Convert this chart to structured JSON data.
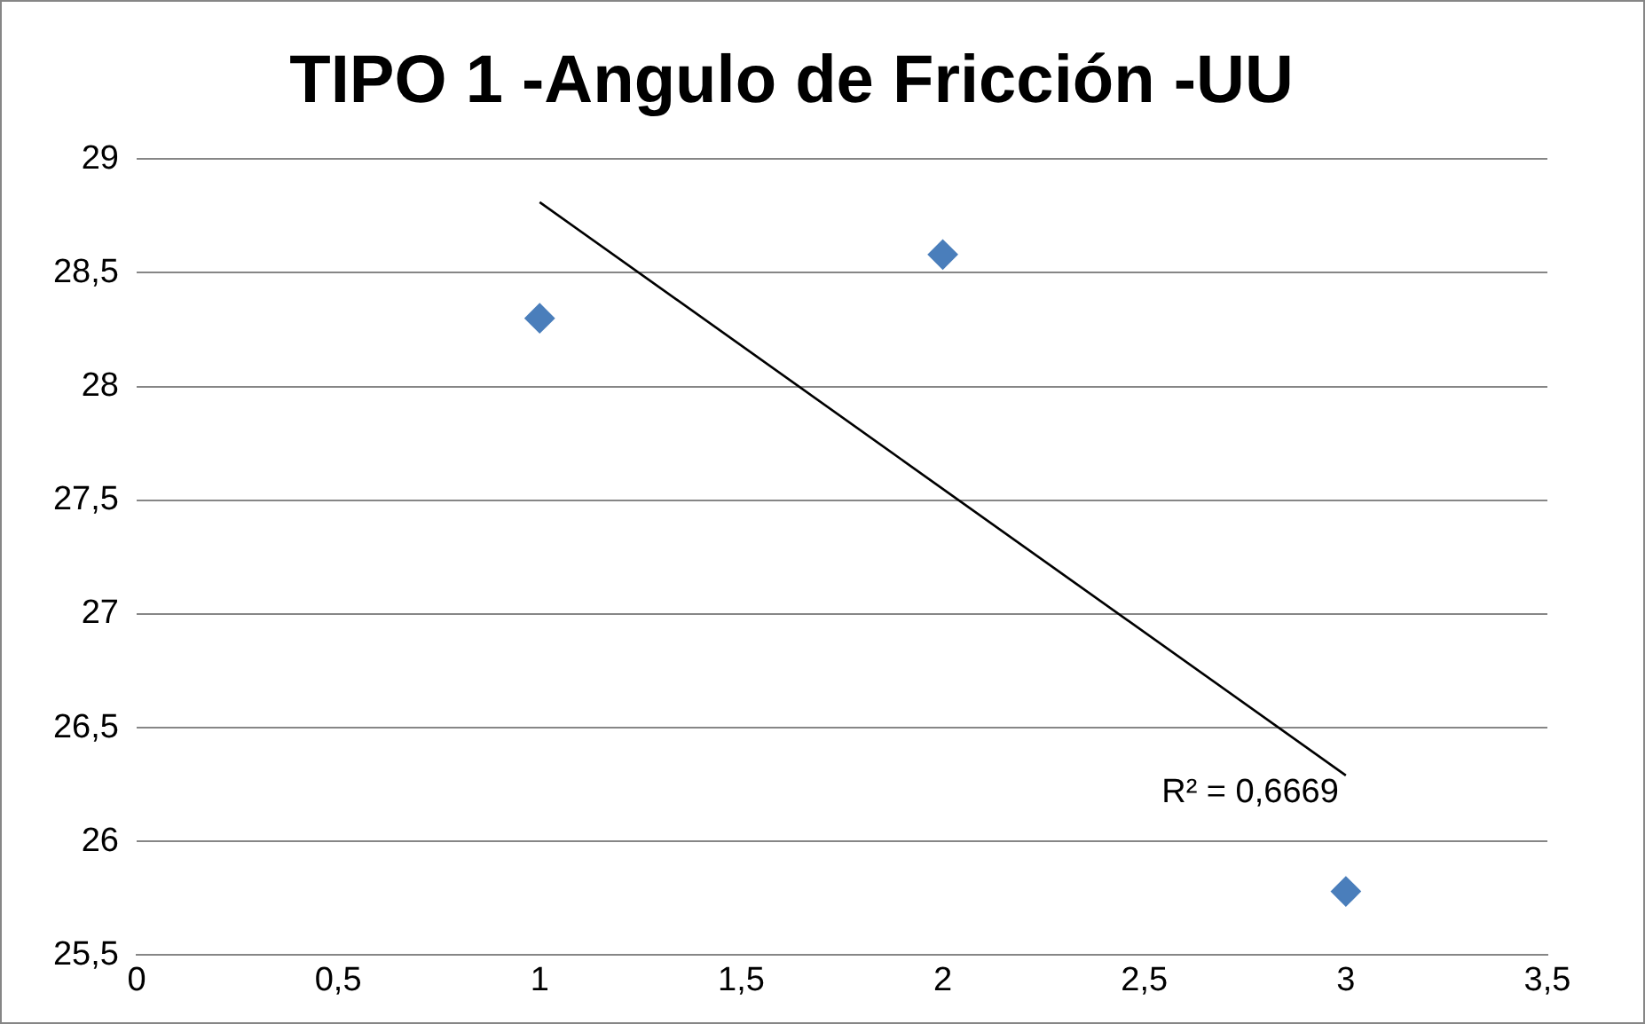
{
  "chart_data": {
    "type": "scatter",
    "title": "TIPO 1 -Angulo de Fricción -UU",
    "series": [
      {
        "color": "#4a7ebb",
        "x": [
          1,
          2,
          3
        ],
        "values": [
          28.3,
          28.58,
          25.78
        ],
        "marker": "diamond"
      },
      {
        "type": "line",
        "color": "#000000",
        "x": [
          1,
          3
        ],
        "values": [
          28.81,
          26.29
        ],
        "marker": "none",
        "line_style": "solid"
      }
    ],
    "annotations": [
      "R² = 0,6669"
    ],
    "xlim": [
      0,
      3.5
    ],
    "xticks": [
      0,
      {
        "value": 0.5,
        "label": "0,5"
      },
      1,
      {
        "value": 1.5,
        "label": "1,5"
      },
      2,
      {
        "value": 2.5,
        "label": "2,5"
      },
      3,
      {
        "value": 3.5,
        "label": "3,5"
      }
    ],
    "ylim": [
      25.5,
      29
    ],
    "yticks": [
      {
        "value": 25.5,
        "label": "25,5"
      },
      26,
      {
        "value": 26.5,
        "label": "26,5"
      },
      27,
      {
        "value": 27.5,
        "label": "27,5"
      },
      28,
      {
        "value": 28.5,
        "label": "28,5"
      },
      29
    ],
    "grid": "y",
    "legend": false
  }
}
